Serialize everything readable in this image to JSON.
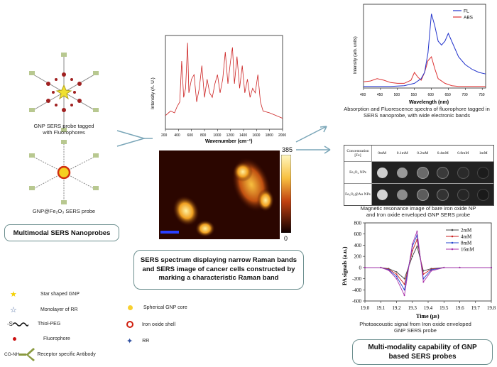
{
  "left": {
    "probe1_caption_line1": "GNP SERS probe tagged",
    "probe1_caption_line2": "with Fluorophores",
    "probe2_caption": "GNP@Fe₂O₃ SERS probe",
    "title_box": "Multimodal SERS Nanoprobes"
  },
  "raman": {
    "ylabel": "Intensity (A. U.)",
    "xlabel": "Wavenumber (cm⁻¹)",
    "ticks": [
      "200",
      "400",
      "600",
      "800",
      "1000",
      "1200",
      "1400",
      "1600",
      "1800",
      "2000"
    ]
  },
  "sers_image": {
    "colorbar_max": "385",
    "colorbar_min": "0"
  },
  "center_box": {
    "line1": "SERS spectrum displaying narrow Raman bands",
    "line2": "and SERS image of cancer cells constructed by",
    "line3": "marking a characteristic Raman band"
  },
  "fluor": {
    "ylabel": "Intensity (arb. units)",
    "xlabel": "Wavelength (nm)",
    "legend_fl": "FL",
    "legend_abs": "ABS",
    "ticks": [
      "400",
      "450",
      "500",
      "550",
      "600",
      "650",
      "700",
      "750"
    ],
    "caption_line1": "Absorption and Fluorescence spectra of fluorophore tagged in",
    "caption_line2": "SERS nanoprobe, with wide electronic bands"
  },
  "mri": {
    "corner": "Concentration [Fe]",
    "cols": [
      "0mM",
      "0.1mM",
      "0.2mM",
      "0.4mM",
      "0.8mM",
      "1mM"
    ],
    "row1": "Fe₃O₄ NPs",
    "row2": "Fe₃O₄@Au NPs",
    "caption_line1": "Magnetic resonance image of bare iron oxide NP",
    "caption_line2": "and Iron oxide enveloped GNP SERS probe"
  },
  "pa": {
    "ylabel": "PA signals (a.u.)",
    "xlabel": "Time (μs)",
    "yticks": [
      "800",
      "600",
      "400",
      "200",
      "0",
      "-200",
      "-400",
      "-600"
    ],
    "xticks": [
      "19.0",
      "19.1",
      "19.2",
      "19.3",
      "19.4",
      "19.5",
      "19.6",
      "19.7",
      "19.8"
    ],
    "caption_line1": "Photoacoustic signal from Iron oxide enveloped",
    "caption_line2": "GNP SERS probe"
  },
  "right_box": {
    "line1": "Multi-modality capability of GNP",
    "line2": "based SERS probes"
  },
  "legend": {
    "star_gnp": "Star shaped GNP",
    "rr_monolayer": "Monolayer of RR",
    "thiol_peg": "Thiol-PEG",
    "fluorophore": "Fluorophore",
    "antibody": "Receptor specific Antibody",
    "antibody_prefix": "CO-NH",
    "thiol_prefix": "-S",
    "spherical_core": "Spherical GNP core",
    "iron_shell": "Iron oxide shell",
    "rr": "RR"
  },
  "chart_data": [
    {
      "type": "line",
      "xlabel": "Wavenumber (cm⁻¹)",
      "ylabel": "Intensity (A. U.)",
      "xlim": [
        200,
        2000
      ],
      "series": [
        {
          "color": "#cc2222",
          "x": [
            200,
            280,
            340,
            380,
            420,
            450,
            480,
            510,
            540,
            560,
            600,
            640,
            680,
            720,
            760,
            800,
            840,
            880,
            920,
            960,
            1000,
            1040,
            1080,
            1120,
            1160,
            1200,
            1230,
            1260,
            1300,
            1340,
            1380,
            1420,
            1460,
            1500,
            1540,
            1580,
            1620,
            1660,
            1700,
            1800,
            1900,
            2000
          ],
          "y": [
            0.15,
            0.2,
            0.18,
            0.25,
            0.3,
            0.75,
            0.35,
            0.45,
            0.95,
            0.4,
            0.55,
            0.6,
            0.3,
            0.45,
            0.7,
            0.35,
            0.55,
            0.4,
            0.35,
            0.5,
            0.6,
            0.4,
            0.55,
            0.85,
            0.5,
            0.75,
            0.9,
            0.5,
            0.8,
            0.45,
            0.7,
            0.4,
            0.55,
            0.35,
            0.45,
            0.4,
            0.6,
            0.3,
            0.2,
            0.18,
            0.15,
            0.12
          ]
        }
      ]
    },
    {
      "type": "line",
      "xlabel": "Wavelength (nm)",
      "ylabel": "Intensity (arb. units)",
      "xlim": [
        400,
        760
      ],
      "series": [
        {
          "name": "FL",
          "color": "#2233cc",
          "x": [
            400,
            440,
            480,
            520,
            550,
            570,
            580,
            590,
            600,
            610,
            620,
            630,
            640,
            650,
            660,
            680,
            700,
            720,
            740,
            760
          ],
          "y": [
            0.02,
            0.02,
            0.02,
            0.03,
            0.06,
            0.12,
            0.2,
            0.45,
            0.95,
            0.8,
            0.6,
            0.55,
            0.6,
            0.7,
            0.6,
            0.4,
            0.3,
            0.24,
            0.2,
            0.18
          ]
        },
        {
          "name": "ABS",
          "color": "#dd3333",
          "x": [
            400,
            420,
            440,
            460,
            480,
            500,
            520,
            540,
            550,
            560,
            570,
            580,
            590,
            600,
            610,
            620,
            640,
            660,
            680,
            700,
            720,
            760
          ],
          "y": [
            0.08,
            0.09,
            0.12,
            0.1,
            0.07,
            0.06,
            0.06,
            0.1,
            0.2,
            0.14,
            0.1,
            0.2,
            0.35,
            0.4,
            0.25,
            0.12,
            0.06,
            0.03,
            0.02,
            0.02,
            0.02,
            0.02
          ]
        }
      ]
    },
    {
      "type": "line",
      "xlabel": "Time (μs)",
      "ylabel": "PA signals (a.u.)",
      "xlim": [
        19.0,
        19.8
      ],
      "ylim": [
        -600,
        800
      ],
      "series": [
        {
          "name": "2mM",
          "color": "#444444",
          "x": [
            19.0,
            19.1,
            19.15,
            19.2,
            19.25,
            19.3,
            19.33,
            19.37,
            19.42,
            19.5,
            19.6,
            19.8
          ],
          "y": [
            0,
            0,
            -20,
            -80,
            -200,
            200,
            380,
            -60,
            -20,
            0,
            0,
            0
          ]
        },
        {
          "name": "4mM",
          "color": "#cc2222",
          "x": [
            19.0,
            19.1,
            19.15,
            19.2,
            19.25,
            19.3,
            19.33,
            19.37,
            19.42,
            19.5,
            19.6,
            19.8
          ],
          "y": [
            0,
            0,
            -30,
            -120,
            -300,
            300,
            500,
            -120,
            -30,
            0,
            0,
            0
          ]
        },
        {
          "name": "8mM",
          "color": "#2244cc",
          "x": [
            19.0,
            19.1,
            19.15,
            19.2,
            19.25,
            19.3,
            19.33,
            19.37,
            19.42,
            19.5,
            19.6,
            19.8
          ],
          "y": [
            0,
            0,
            -40,
            -160,
            -400,
            380,
            580,
            -200,
            -40,
            0,
            0,
            0
          ]
        },
        {
          "name": "16mM",
          "color": "#aa33aa",
          "x": [
            19.0,
            19.1,
            19.15,
            19.2,
            19.25,
            19.3,
            19.33,
            19.37,
            19.42,
            19.5,
            19.6,
            19.8
          ],
          "y": [
            0,
            0,
            -50,
            -200,
            -500,
            420,
            650,
            -260,
            -60,
            0,
            0,
            0
          ]
        }
      ]
    }
  ]
}
